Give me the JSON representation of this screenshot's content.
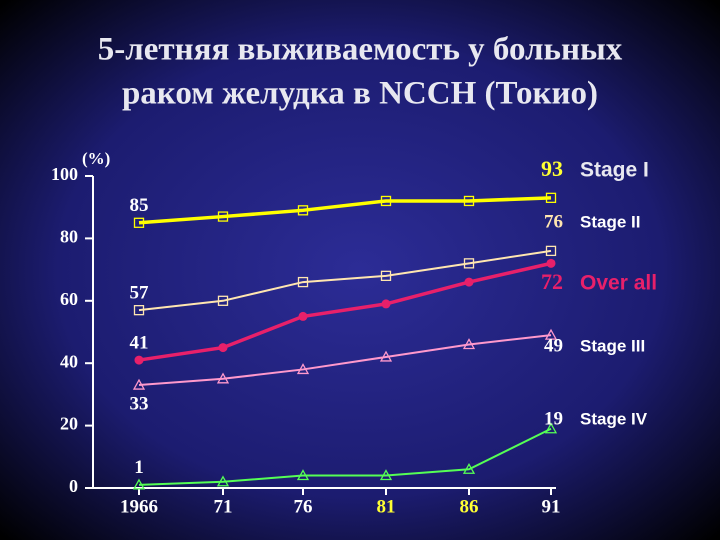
{
  "chart_data": {
    "type": "line",
    "title": [
      "5-летняя выживаемость у больных",
      "раком желудка в NCCH (Токио)"
    ],
    "y_label": "(%)",
    "categories": [
      "1966",
      "71",
      "76",
      "81",
      "86",
      "91"
    ],
    "category_colors": [
      "#ffffff",
      "#ffffff",
      "#ffffff",
      "#ffff33",
      "#ffff33",
      "#ffffff"
    ],
    "ylim": [
      0,
      100
    ],
    "yticks": [
      0,
      20,
      40,
      60,
      80,
      100
    ],
    "series": [
      {
        "name": "Stage I",
        "color": "#ffff00",
        "label_color": "#ffff33",
        "name_color": "#e8e8f0",
        "marker": "square",
        "width": 3.5,
        "values": [
          85,
          87,
          89,
          92,
          92,
          93
        ]
      },
      {
        "name": "Stage II",
        "color": "#ffe6b0",
        "label_color": "#ffe6b0",
        "name_color": "#ffffff",
        "marker": "square",
        "width": 2,
        "values": [
          57,
          60,
          66,
          68,
          72,
          76
        ]
      },
      {
        "name": "Over all",
        "color": "#e8206a",
        "label_color": "#e8206a",
        "name_color": "#e8206a",
        "marker": "circle",
        "width": 3.5,
        "values": [
          41,
          45,
          55,
          59,
          66,
          72
        ]
      },
      {
        "name": "Stage III",
        "color": "#ff99cc",
        "label_color": "#ffffff",
        "name_color": "#ffffff",
        "marker": "triangle",
        "width": 2,
        "values": [
          33,
          35,
          38,
          42,
          46,
          49
        ]
      },
      {
        "name": "Stage IV",
        "color": "#55ff55",
        "label_color": "#ffffff",
        "name_color": "#ffffff",
        "marker": "triangle",
        "width": 2,
        "values": [
          1,
          2,
          4,
          4,
          6,
          19
        ]
      }
    ]
  }
}
